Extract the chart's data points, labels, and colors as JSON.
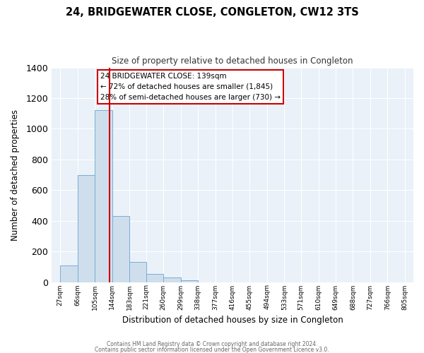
{
  "title": "24, BRIDGEWATER CLOSE, CONGLETON, CW12 3TS",
  "subtitle": "Size of property relative to detached houses in Congleton",
  "xlabel": "Distribution of detached houses by size in Congleton",
  "ylabel": "Number of detached properties",
  "bin_edges": [
    27,
    66,
    105,
    144,
    183,
    221,
    260,
    299,
    338,
    377,
    416,
    455,
    494,
    533,
    571,
    610,
    649,
    688,
    727,
    766,
    805
  ],
  "bin_labels": [
    "27sqm",
    "66sqm",
    "105sqm",
    "144sqm",
    "183sqm",
    "221sqm",
    "260sqm",
    "299sqm",
    "338sqm",
    "377sqm",
    "416sqm",
    "455sqm",
    "494sqm",
    "533sqm",
    "571sqm",
    "610sqm",
    "649sqm",
    "688sqm",
    "727sqm",
    "766sqm",
    "805sqm"
  ],
  "bar_values": [
    110,
    700,
    1120,
    430,
    130,
    55,
    30,
    10,
    0,
    0,
    0,
    0,
    0,
    0,
    0,
    0,
    0,
    0,
    0,
    0
  ],
  "bar_color": "#cfdeed",
  "bar_edge_color": "#7aadd4",
  "property_value": 139,
  "ylim": [
    0,
    1400
  ],
  "yticks": [
    0,
    200,
    400,
    600,
    800,
    1000,
    1200,
    1400
  ],
  "annotation_title": "24 BRIDGEWATER CLOSE: 139sqm",
  "annotation_line1": "← 72% of detached houses are smaller (1,845)",
  "annotation_line2": "28% of semi-detached houses are larger (730) →",
  "annotation_box_color": "#ffffff",
  "annotation_box_edge": "#cc0000",
  "property_line_color": "#cc0000",
  "footer_line1": "Contains HM Land Registry data © Crown copyright and database right 2024.",
  "footer_line2": "Contains public sector information licensed under the Open Government Licence v3.0.",
  "bg_color": "#ffffff",
  "plot_bg_color": "#eaf1f8",
  "grid_color": "#ffffff"
}
